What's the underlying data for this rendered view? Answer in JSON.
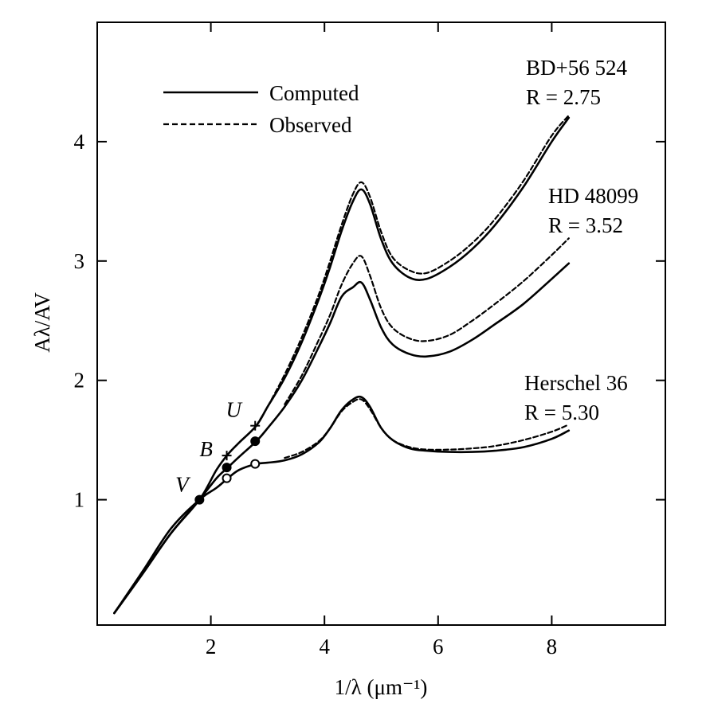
{
  "chart_data": {
    "type": "line",
    "title": "",
    "xlabel": "1/λ (μm⁻¹)",
    "ylabel": "Aλ/AV",
    "xlim": [
      0,
      10
    ],
    "ylim": [
      -0.05,
      5
    ],
    "xticks": [
      2,
      4,
      6,
      8
    ],
    "yticks": [
      1,
      2,
      3,
      4
    ],
    "grid": false,
    "legend": {
      "placement": "top-left",
      "entries": [
        {
          "label": "Computed",
          "style": "solid"
        },
        {
          "label": "Observed",
          "style": "dashed"
        }
      ]
    },
    "curve_labels": [
      {
        "name": "BD+56 524",
        "r_label": "R = 2.75"
      },
      {
        "name": "HD 48099",
        "r_label": "R = 3.52"
      },
      {
        "name": "Herschel 36",
        "r_label": "R = 5.30"
      }
    ],
    "series": [
      {
        "name": "BD+56 524 (Computed)",
        "style": "solid",
        "x": [
          0.3,
          0.8,
          1.3,
          1.8,
          2.1,
          2.3,
          2.5,
          2.8,
          3.0,
          3.3,
          3.6,
          3.9,
          4.1,
          4.3,
          4.5,
          4.65,
          4.8,
          5.0,
          5.2,
          5.5,
          5.8,
          6.2,
          6.6,
          7.0,
          7.5,
          8.0,
          8.3
        ],
        "y": [
          0.05,
          0.38,
          0.72,
          1.0,
          1.25,
          1.38,
          1.48,
          1.62,
          1.78,
          2.02,
          2.32,
          2.68,
          2.95,
          3.25,
          3.5,
          3.6,
          3.48,
          3.18,
          2.98,
          2.86,
          2.85,
          2.95,
          3.1,
          3.3,
          3.62,
          4.0,
          4.2
        ]
      },
      {
        "name": "BD+56 524 (Observed)",
        "style": "dashed",
        "x": [
          2.8,
          3.0,
          3.3,
          3.6,
          3.9,
          4.1,
          4.3,
          4.5,
          4.65,
          4.8,
          5.0,
          5.2,
          5.5,
          5.8,
          6.2,
          6.6,
          7.0,
          7.5,
          8.0,
          8.3
        ],
        "y": [
          1.62,
          1.78,
          2.05,
          2.36,
          2.72,
          3.0,
          3.3,
          3.56,
          3.66,
          3.54,
          3.24,
          3.03,
          2.92,
          2.9,
          3.0,
          3.15,
          3.35,
          3.67,
          4.05,
          4.22
        ]
      },
      {
        "name": "HD 48099 (Computed)",
        "style": "solid",
        "x": [
          0.3,
          0.8,
          1.3,
          1.8,
          2.1,
          2.3,
          2.5,
          2.8,
          3.0,
          3.3,
          3.6,
          3.9,
          4.1,
          4.3,
          4.5,
          4.65,
          4.8,
          5.0,
          5.2,
          5.5,
          5.8,
          6.2,
          6.6,
          7.0,
          7.5,
          8.0,
          8.3
        ],
        "y": [
          0.05,
          0.38,
          0.72,
          1.0,
          1.18,
          1.27,
          1.36,
          1.49,
          1.6,
          1.78,
          2.0,
          2.28,
          2.48,
          2.7,
          2.78,
          2.82,
          2.68,
          2.44,
          2.3,
          2.22,
          2.2,
          2.24,
          2.34,
          2.47,
          2.64,
          2.85,
          2.98
        ]
      },
      {
        "name": "HD 48099 (Observed)",
        "style": "dashed",
        "x": [
          3.3,
          3.6,
          3.9,
          4.1,
          4.3,
          4.5,
          4.65,
          4.8,
          5.0,
          5.2,
          5.5,
          5.8,
          6.2,
          6.6,
          7.0,
          7.5,
          8.0,
          8.3
        ],
        "y": [
          1.8,
          2.04,
          2.34,
          2.55,
          2.8,
          2.98,
          3.04,
          2.88,
          2.6,
          2.44,
          2.35,
          2.33,
          2.38,
          2.5,
          2.64,
          2.83,
          3.05,
          3.19
        ]
      },
      {
        "name": "Herschel 36 (Computed)",
        "style": "solid",
        "x": [
          0.3,
          0.8,
          1.3,
          1.8,
          2.1,
          2.3,
          2.5,
          2.8,
          3.0,
          3.3,
          3.6,
          3.9,
          4.1,
          4.3,
          4.5,
          4.65,
          4.8,
          5.0,
          5.2,
          5.5,
          5.8,
          6.2,
          6.6,
          7.0,
          7.5,
          8.0,
          8.3
        ],
        "y": [
          0.05,
          0.4,
          0.76,
          1.0,
          1.1,
          1.18,
          1.25,
          1.3,
          1.31,
          1.33,
          1.38,
          1.48,
          1.6,
          1.75,
          1.84,
          1.86,
          1.78,
          1.6,
          1.5,
          1.43,
          1.41,
          1.4,
          1.4,
          1.41,
          1.44,
          1.51,
          1.58
        ]
      },
      {
        "name": "Herschel 36 (Observed)",
        "style": "dashed",
        "x": [
          3.3,
          3.6,
          3.9,
          4.1,
          4.3,
          4.5,
          4.65,
          4.8,
          5.0,
          5.2,
          5.5,
          5.8,
          6.2,
          6.6,
          7.0,
          7.5,
          8.0,
          8.3
        ],
        "y": [
          1.35,
          1.4,
          1.49,
          1.6,
          1.74,
          1.82,
          1.84,
          1.76,
          1.6,
          1.5,
          1.44,
          1.42,
          1.42,
          1.43,
          1.45,
          1.5,
          1.57,
          1.63
        ]
      }
    ],
    "markers": [
      {
        "band": "V",
        "x": 1.8,
        "y": 1.0,
        "symbol": "filled-circle"
      },
      {
        "band": "B",
        "x": 2.28,
        "y": 1.37,
        "symbol": "plus"
      },
      {
        "band": "B",
        "x": 2.28,
        "y": 1.27,
        "symbol": "filled-circle"
      },
      {
        "band": "B",
        "x": 2.28,
        "y": 1.18,
        "symbol": "open-circle"
      },
      {
        "band": "U",
        "x": 2.78,
        "y": 1.62,
        "symbol": "plus"
      },
      {
        "band": "U",
        "x": 2.78,
        "y": 1.49,
        "symbol": "filled-circle"
      },
      {
        "band": "U",
        "x": 2.78,
        "y": 1.3,
        "symbol": "open-circle"
      }
    ],
    "band_labels": [
      {
        "text": "V",
        "x": 1.8,
        "y": 1.0
      },
      {
        "text": "B",
        "x": 2.28,
        "y": 1.35
      },
      {
        "text": "U",
        "x": 2.78,
        "y": 1.62
      }
    ]
  }
}
